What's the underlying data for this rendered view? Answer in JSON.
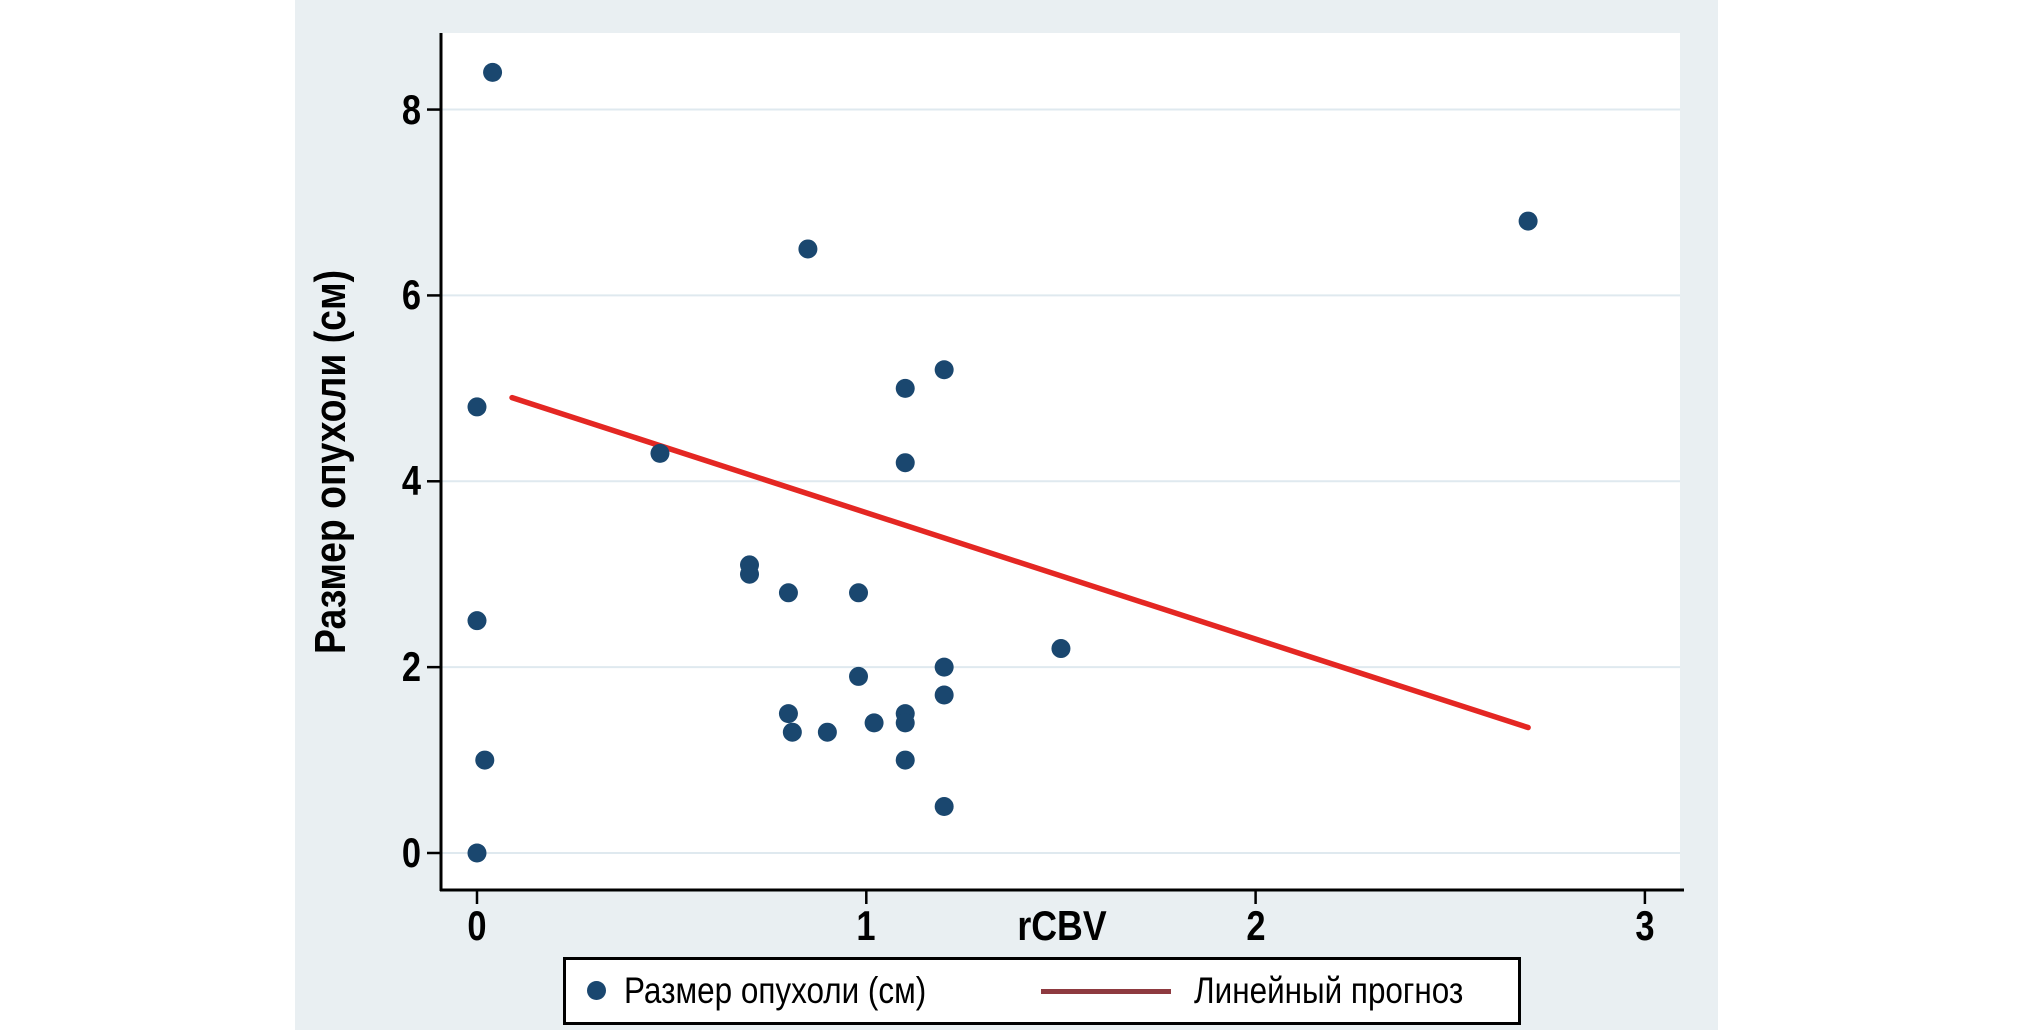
{
  "figure": {
    "background_color": "#e9eff2",
    "plot_background_color": "#ffffff",
    "gridline_color": "#dfe9ef",
    "axis_color": "#000000",
    "text_color": "#000000"
  },
  "chart_data": {
    "type": "scatter",
    "title": "",
    "xlabel": "rCBV",
    "ylabel": "Размер опухоли (см)",
    "xlim": [
      -0.09,
      3.09
    ],
    "ylim": [
      -0.4,
      8.82
    ],
    "x_ticks": [
      0,
      1,
      2,
      3
    ],
    "y_ticks": [
      0,
      2,
      4,
      6,
      8
    ],
    "grid": "horizontal-only",
    "legend_position": "bottom-center",
    "series": [
      {
        "name": "Размер опухоли (см)",
        "type": "scatter",
        "marker": "circle",
        "marker_color": "#1a476f",
        "points": [
          [
            0.04,
            8.4
          ],
          [
            2.7,
            6.8
          ],
          [
            0.85,
            6.5
          ],
          [
            1.2,
            5.2
          ],
          [
            1.1,
            5.0
          ],
          [
            0,
            4.8
          ],
          [
            0.47,
            4.3
          ],
          [
            1.1,
            4.2
          ],
          [
            0.7,
            3.1
          ],
          [
            0.7,
            3.0
          ],
          [
            0.8,
            2.8
          ],
          [
            0.98,
            2.8
          ],
          [
            0,
            2.5
          ],
          [
            1.5,
            2.2
          ],
          [
            1.2,
            2.0
          ],
          [
            0.98,
            1.9
          ],
          [
            1.2,
            1.7
          ],
          [
            0.8,
            1.5
          ],
          [
            1.1,
            1.5
          ],
          [
            1.02,
            1.4
          ],
          [
            1.1,
            1.4
          ],
          [
            0.81,
            1.3
          ],
          [
            0.9,
            1.3
          ],
          [
            0.02,
            1.0
          ],
          [
            1.1,
            1.0
          ],
          [
            1.2,
            0.5
          ],
          [
            0,
            0
          ]
        ]
      },
      {
        "name": "Линейный прогноз",
        "type": "line",
        "line_color": "#e42723",
        "legend_swatch_color": "#8e3a40",
        "endpoints": [
          [
            0.09,
            4.9
          ],
          [
            2.7,
            1.35
          ]
        ]
      }
    ]
  },
  "legend": {
    "marker_label": "Размер опухоли (см)",
    "line_label": "Линейный прогноз"
  }
}
